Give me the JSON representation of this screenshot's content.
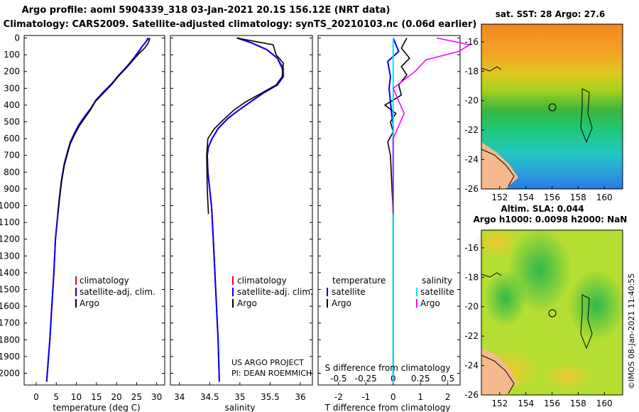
{
  "header": {
    "line1": "Argo profile: aoml 5904339_318 03-Jan-2021 20.1S 156.12E (NRT data)",
    "line2": "Climatology: CARS2009. Satellite-adjusted climatology: synTS_20210103.nc (0.06d earlier)"
  },
  "colors": {
    "climatology": "#ff0000",
    "satellite": "#0000ff",
    "argo": "#000000",
    "salinity_diff": "#00e5ff",
    "salinity_argo_diff": "#ff00ff"
  },
  "depth_ticks": [
    "0",
    "100",
    "200",
    "300",
    "400",
    "500",
    "600",
    "700",
    "800",
    "900",
    "1000",
    "1100",
    "1200",
    "1300",
    "1400",
    "1500",
    "1600",
    "1700",
    "1800",
    "1900",
    "2000"
  ],
  "chart_data": [
    {
      "type": "line",
      "panel": "temperature",
      "xlabel": "temperature (deg C)",
      "ylabel": "depth",
      "xlim": [
        -3,
        32
      ],
      "ylim": [
        2070,
        -15
      ],
      "xticks": [
        "0",
        "5",
        "10",
        "15",
        "20",
        "25",
        "30"
      ],
      "legend": [
        "climatology",
        "satellite-adj. clim.",
        "Argo"
      ],
      "series": [
        {
          "name": "climatology",
          "x": [
            27.8,
            27.4,
            26.4,
            25.6,
            24.3,
            22.6,
            20.6,
            18.9,
            16.8,
            14.9,
            13.6,
            12.0,
            10.6,
            9.5,
            8.5,
            7.9,
            7.0,
            6.3,
            5.8,
            5.4,
            4.8,
            4.4,
            3.9,
            3.4,
            2.6
          ],
          "y": [
            0,
            20,
            50,
            80,
            120,
            170,
            220,
            270,
            320,
            370,
            420,
            470,
            520,
            570,
            620,
            670,
            750,
            850,
            950,
            1050,
            1200,
            1400,
            1600,
            1800,
            2050
          ]
        },
        {
          "name": "satellite-adj. clim.",
          "x": [
            28.0,
            27.4,
            26.4,
            25.5,
            24.3,
            22.6,
            20.6,
            18.9,
            16.8,
            14.9,
            13.6,
            12.0,
            10.6,
            9.5,
            8.5,
            7.9,
            7.0,
            6.3,
            5.8,
            5.4,
            4.8,
            4.4,
            3.9,
            3.4,
            2.6
          ],
          "y": [
            0,
            20,
            50,
            80,
            120,
            170,
            220,
            270,
            320,
            370,
            420,
            470,
            520,
            570,
            620,
            670,
            750,
            850,
            950,
            1050,
            1200,
            1400,
            1600,
            1800,
            2050
          ]
        },
        {
          "name": "Argo",
          "x": [
            28.3,
            27.9,
            27.0,
            25.3,
            24.2,
            22.4,
            20.4,
            18.7,
            16.7,
            14.7,
            13.5,
            12.0,
            10.6,
            9.5,
            8.5,
            7.9,
            7.0,
            6.3,
            5.8,
            5.4
          ],
          "y": [
            0,
            30,
            60,
            100,
            130,
            180,
            230,
            280,
            330,
            380,
            430,
            480,
            530,
            580,
            630,
            680,
            760,
            860,
            960,
            1050
          ]
        }
      ]
    },
    {
      "type": "line",
      "panel": "salinity",
      "xlabel": "salinity",
      "ylabel": "depth",
      "xlim": [
        33.85,
        36.2
      ],
      "ylim": [
        2070,
        -15
      ],
      "xticks": [
        "34",
        "34.5",
        "35",
        "35.5",
        "36"
      ],
      "legend": [
        "climatology",
        "satellite-adj. clim.",
        "Argo"
      ],
      "series": [
        {
          "name": "climatology",
          "x": [
            34.95,
            35.2,
            35.45,
            35.62,
            35.72,
            35.72,
            35.62,
            35.38,
            35.18,
            34.98,
            34.8,
            34.64,
            34.54,
            34.48,
            34.46,
            34.47,
            34.5,
            34.53,
            34.56,
            34.6,
            34.64,
            34.66
          ],
          "y": [
            0,
            30,
            70,
            120,
            180,
            230,
            280,
            330,
            380,
            430,
            480,
            540,
            600,
            650,
            700,
            800,
            900,
            1000,
            1200,
            1500,
            1800,
            2050
          ]
        },
        {
          "name": "satellite-adj. clim.",
          "x": [
            34.97,
            35.2,
            35.45,
            35.62,
            35.7,
            35.72,
            35.62,
            35.38,
            35.18,
            34.98,
            34.8,
            34.64,
            34.54,
            34.48,
            34.46,
            34.47,
            34.5,
            34.53,
            34.56,
            34.6,
            34.64,
            34.66
          ],
          "y": [
            0,
            30,
            70,
            120,
            180,
            230,
            280,
            330,
            380,
            430,
            480,
            540,
            600,
            650,
            700,
            800,
            900,
            1000,
            1200,
            1500,
            1800,
            2050
          ]
        },
        {
          "name": "Argo",
          "x": [
            34.95,
            35.25,
            35.55,
            35.6,
            35.72,
            35.7,
            35.6,
            35.35,
            35.1,
            34.9,
            34.75,
            34.58,
            34.47,
            34.45,
            34.46,
            34.48
          ],
          "y": [
            0,
            20,
            40,
            100,
            150,
            230,
            280,
            330,
            380,
            430,
            480,
            540,
            600,
            700,
            900,
            1050
          ]
        }
      ]
    },
    {
      "type": "line",
      "panel": "difference",
      "xlabel": "T difference from climatology",
      "xlabel2": "S difference from climatology",
      "ylabel": "depth",
      "xlim": [
        -2.75,
        2.45
      ],
      "ylim": [
        2070,
        -15
      ],
      "xticks": [
        "-2",
        "-1",
        "0",
        "1",
        "2"
      ],
      "xticks_s": [
        "-0.5",
        "-0.25",
        "0",
        "0.25",
        "0.5"
      ],
      "legend_titles": [
        "temperature",
        "salinity"
      ],
      "legend": [
        "satellite",
        "Argo",
        "satellite",
        "Argo"
      ],
      "series": [
        {
          "name": "T satellite",
          "x": [
            0.0,
            0.2,
            -0.2,
            -0.1,
            -0.15,
            -0.1,
            -0.05,
            0.0,
            0.0,
            0.0,
            0.0
          ],
          "y": [
            0,
            80,
            140,
            230,
            300,
            380,
            460,
            520,
            600,
            800,
            2050
          ]
        },
        {
          "name": "T Argo",
          "x": [
            0.5,
            0.3,
            0.6,
            0.3,
            0.5,
            0.2,
            0.3,
            -0.3,
            0.1,
            -0.1,
            0.0,
            -0.2,
            -0.1,
            0.0
          ],
          "y": [
            0,
            60,
            120,
            170,
            220,
            280,
            340,
            400,
            450,
            500,
            560,
            620,
            700,
            1050
          ]
        },
        {
          "name": "S satellite",
          "x": [
            0.0,
            0.0,
            0.0,
            0.0
          ],
          "y": [
            0,
            100,
            600,
            2050
          ]
        },
        {
          "name": "S Argo",
          "x": [
            0.4,
            0.7,
            0.6,
            0.3,
            0.2,
            0.0,
            0.1,
            0.0,
            0.0,
            0.0
          ],
          "y": [
            0,
            40,
            80,
            130,
            200,
            300,
            450,
            600,
            800,
            1050
          ]
        }
      ]
    }
  ],
  "watermark": {
    "line1": "US ARGO PROJECT",
    "line2": "PI: DEAN ROEMMICH"
  },
  "maps": {
    "top_title": "sat. SST: 28 Argo: 27.6",
    "bottom_title_line1": "Altim. SLA: 0.044",
    "bottom_title_line2": "Argo h1000: 0.0098 h2000: NaN",
    "lat_ticks": [
      "-16",
      "-18",
      "-20",
      "-22",
      "-24",
      "-26"
    ],
    "lon_ticks": [
      "152",
      "154",
      "156",
      "158",
      "160"
    ],
    "credit": "©IMOS 08-Jan-2021 11:40:55"
  }
}
